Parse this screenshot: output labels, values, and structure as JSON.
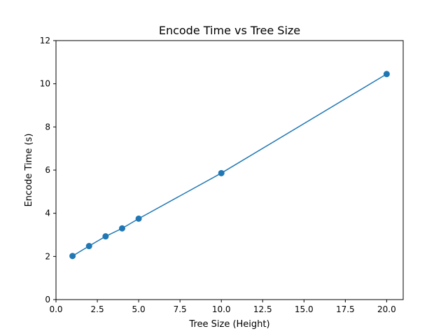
{
  "chart_data": {
    "type": "line",
    "title": "Encode Time vs Tree Size",
    "xlabel": "Tree Size (Height)",
    "ylabel": "Encode Time (s)",
    "xlim": [
      0,
      21
    ],
    "ylim": [
      0,
      12
    ],
    "xticks": [
      0.0,
      2.5,
      5.0,
      7.5,
      10.0,
      12.5,
      15.0,
      17.5,
      20.0
    ],
    "xtick_labels": [
      "0.0",
      "2.5",
      "5.0",
      "7.5",
      "10.0",
      "12.5",
      "15.0",
      "17.5",
      "20.0"
    ],
    "yticks": [
      0,
      2,
      4,
      6,
      8,
      10,
      12
    ],
    "ytick_labels": [
      "0",
      "2",
      "4",
      "6",
      "8",
      "10",
      "12"
    ],
    "grid": false,
    "legend": false,
    "series": [
      {
        "color": "#1f77b4",
        "marker": "circle",
        "x": [
          1,
          2,
          3,
          4,
          5,
          10,
          20
        ],
        "y": [
          2.02,
          2.48,
          2.93,
          3.3,
          3.75,
          5.86,
          10.45
        ]
      }
    ]
  }
}
